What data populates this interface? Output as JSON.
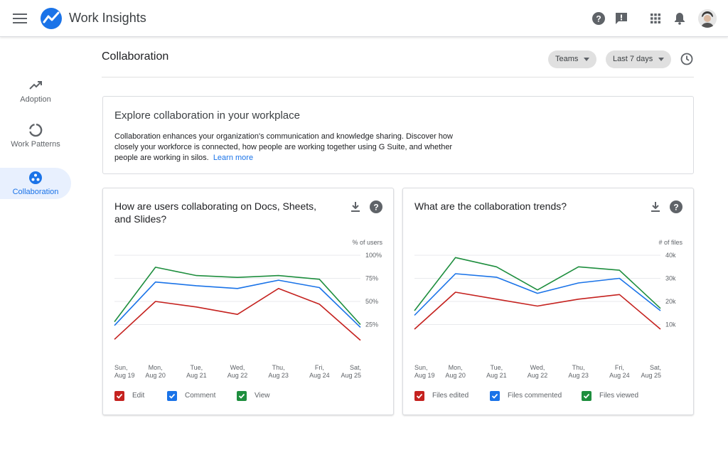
{
  "app": {
    "title": "Work Insights"
  },
  "sidebar": {
    "items": [
      {
        "label": "Adoption",
        "icon": "trending-up-icon"
      },
      {
        "label": "Work Patterns",
        "icon": "donut-icon"
      },
      {
        "label": "Collaboration",
        "icon": "collaboration-icon"
      }
    ]
  },
  "page": {
    "title": "Collaboration",
    "filters": {
      "group": "Teams",
      "range": "Last 7 days"
    }
  },
  "explore": {
    "heading": "Explore collaboration in your workplace",
    "body": "Collaboration enhances your organization's communication and knowledge sharing. Discover how closely your workforce is connected, how people are working together using G Suite, and whether people are working in silos.",
    "link": "Learn more"
  },
  "colors": {
    "edit": "#c5221f",
    "comment": "#1a73e8",
    "view": "#1e8e3e",
    "accent": "#1a73e8"
  },
  "chart_data": [
    {
      "type": "line",
      "title": "How are users collaborating on Docs, Sheets, and Slides?",
      "ylabel": "% of users",
      "ylim": [
        0,
        100
      ],
      "yticks": [
        "100%",
        "75%",
        "50%",
        "25%"
      ],
      "yticks_values": [
        100,
        75,
        50,
        25
      ],
      "categories": [
        [
          "Sun,",
          "Aug 19"
        ],
        [
          "Mon,",
          "Aug 20"
        ],
        [
          "Tue,",
          "Aug 21"
        ],
        [
          "Wed,",
          "Aug 22"
        ],
        [
          "Thu,",
          "Aug 23"
        ],
        [
          "Fri,",
          "Aug 24"
        ],
        [
          "Sat,",
          "Aug 25"
        ]
      ],
      "series": [
        {
          "name": "Edit",
          "color": "#c5221f",
          "values": [
            9,
            50,
            44,
            36,
            64,
            47,
            8
          ]
        },
        {
          "name": "Comment",
          "color": "#1a73e8",
          "values": [
            24,
            71,
            67,
            64,
            73,
            65,
            22
          ]
        },
        {
          "name": "View",
          "color": "#1e8e3e",
          "values": [
            28,
            87,
            78,
            76,
            78,
            74,
            25
          ]
        }
      ],
      "grid": true
    },
    {
      "type": "line",
      "title": "What are the collaboration trends?",
      "ylabel": "# of files",
      "ylim": [
        0,
        40000
      ],
      "yticks": [
        "40k",
        "30k",
        "20k",
        "10k"
      ],
      "yticks_values": [
        40000,
        30000,
        20000,
        10000
      ],
      "categories": [
        [
          "Sun,",
          "Aug 19"
        ],
        [
          "Mon,",
          "Aug 20"
        ],
        [
          "Tue,",
          "Aug 21"
        ],
        [
          "Wed,",
          "Aug 22"
        ],
        [
          "Thu,",
          "Aug 23"
        ],
        [
          "Fri,",
          "Aug 24"
        ],
        [
          "Sat,",
          "Aug 25"
        ]
      ],
      "series": [
        {
          "name": "Files edited",
          "color": "#c5221f",
          "values": [
            8000,
            24000,
            21000,
            18000,
            21000,
            23000,
            8000
          ]
        },
        {
          "name": "Files commented",
          "color": "#1a73e8",
          "values": [
            14000,
            32000,
            30500,
            23500,
            28000,
            30000,
            16000
          ]
        },
        {
          "name": "Files viewed",
          "color": "#1e8e3e",
          "values": [
            16000,
            39000,
            35000,
            25000,
            35000,
            33500,
            17000
          ]
        }
      ],
      "grid": true
    }
  ]
}
